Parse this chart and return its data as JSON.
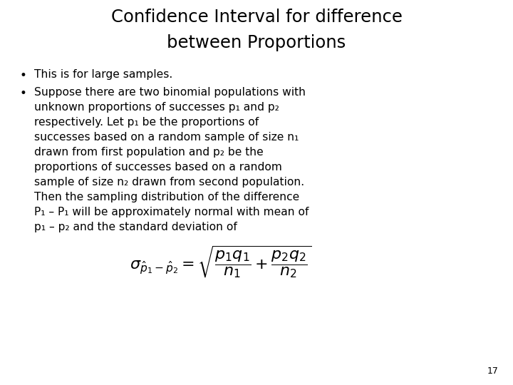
{
  "title_line1": "Confidence Interval for difference",
  "title_line2": "between Proportions",
  "bullet1": "This is for large samples.",
  "bullet2_lines": [
    "Suppose there are two binomial populations with",
    "unknown proportions of successes p₁ and p₂",
    "respectively. Let p₁ be the proportions of",
    "successes based on a random sample of size n₁",
    "drawn from first population and p₂ be the",
    "proportions of successes based on a random",
    "sample of size n₂ drawn from second population.",
    "Then the sampling distribution of the difference",
    "P₁ – P₁ will be approximately normal with mean of",
    "p₁ – p₂ and the standard deviation of"
  ],
  "page_number": "17",
  "bg_color": "#ffffff",
  "text_color": "#000000",
  "title_fontsize": 17.5,
  "body_fontsize": 11.2,
  "formula_fontsize": 16
}
